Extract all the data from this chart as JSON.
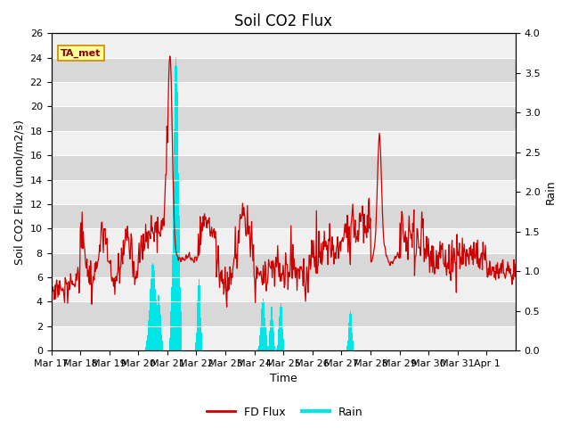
{
  "title": "Soil CO2 Flux",
  "xlabel": "Time",
  "ylabel_left": "Soil CO2 Flux (umol/m2/s)",
  "ylabel_right": "Rain",
  "ylim_left": [
    0,
    26
  ],
  "ylim_right": [
    0,
    4.0
  ],
  "yticks_left": [
    0,
    2,
    4,
    6,
    8,
    10,
    12,
    14,
    16,
    18,
    20,
    22,
    24,
    26
  ],
  "yticks_right": [
    0.0,
    0.5,
    1.0,
    1.5,
    2.0,
    2.5,
    3.0,
    3.5,
    4.0
  ],
  "flux_color": "#cc0000",
  "rain_color": "#00e5e5",
  "background_color": "#e8e8e8",
  "band_color_light": "#f0f0f0",
  "band_color_dark": "#d8d8d8",
  "annotation_text": "TA_met",
  "annotation_bg": "#ffff99",
  "annotation_border": "#cc8800",
  "annotation_text_color": "#8b0000",
  "legend_flux_label": "FD Flux",
  "legend_rain_label": "Rain",
  "title_fontsize": 12,
  "axis_label_fontsize": 9,
  "tick_label_fontsize": 8,
  "xtick_labels": [
    "Mar 17",
    "Mar 18",
    "Mar 19",
    "Mar 20",
    "Mar 21",
    "Mar 22",
    "Mar 23",
    "Mar 24",
    "Mar 25",
    "Mar 26",
    "Mar 27",
    "Mar 28",
    "Mar 29",
    "Mar 30",
    "Mar 31",
    "Apr 1"
  ]
}
